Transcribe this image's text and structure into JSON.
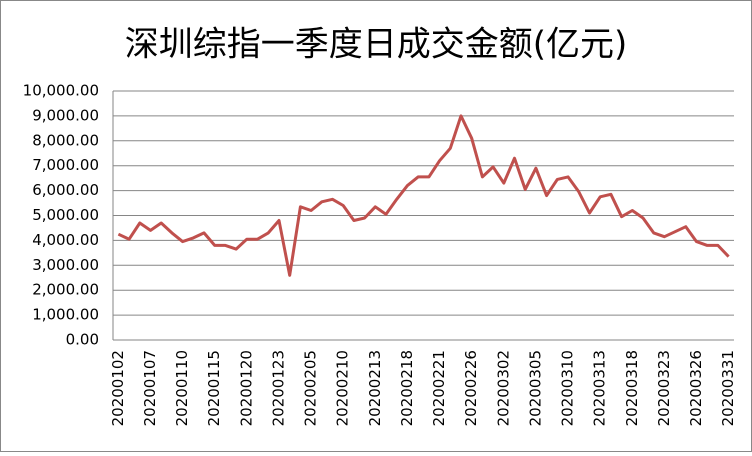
{
  "chart_data": {
    "type": "line",
    "title": "深圳综指一季度日成交金额(亿元)",
    "categories": [
      "20200102",
      null,
      null,
      "20200107",
      null,
      null,
      "20200110",
      null,
      null,
      "20200115",
      null,
      null,
      "20200120",
      null,
      null,
      "20200123",
      null,
      null,
      "20200205",
      null,
      null,
      "20200210",
      null,
      null,
      "20200213",
      null,
      null,
      "20200218",
      null,
      null,
      "20200221",
      null,
      null,
      "20200226",
      null,
      null,
      "20200302",
      null,
      null,
      "20200305",
      null,
      null,
      "20200310",
      null,
      null,
      "20200313",
      null,
      null,
      "20200318",
      null,
      null,
      "20200323",
      null,
      null,
      "20200326",
      null,
      null,
      "20200331"
    ],
    "values": [
      4250,
      4050,
      4700,
      4400,
      4700,
      4300,
      3950,
      4100,
      4300,
      3800,
      3800,
      3650,
      4050,
      4050,
      4300,
      4800,
      2600,
      5350,
      5200,
      5550,
      5650,
      5400,
      4800,
      4900,
      5350,
      5050,
      5650,
      6200,
      6550,
      6550,
      7200,
      7700,
      9000,
      8100,
      6550,
      6950,
      6300,
      7300,
      6050,
      6900,
      5800,
      6450,
      6550,
      5950,
      5100,
      5750,
      5850,
      4950,
      5200,
      4900,
      4300,
      4150,
      4350,
      4550,
      3950,
      3800,
      3800,
      3350
    ],
    "color": "#c0504d",
    "ylim": [
      0,
      10000
    ],
    "yticks": [
      {
        "value": 0,
        "label": "0.00"
      },
      {
        "value": 1000,
        "label": "1,000.00"
      },
      {
        "value": 2000,
        "label": "2,000.00"
      },
      {
        "value": 3000,
        "label": "3,000.00"
      },
      {
        "value": 4000,
        "label": "4,000.00"
      },
      {
        "value": 5000,
        "label": "5,000.00"
      },
      {
        "value": 6000,
        "label": "6,000.00"
      },
      {
        "value": 7000,
        "label": "7,000.00"
      },
      {
        "value": 8000,
        "label": "8,000.00"
      },
      {
        "value": 9000,
        "label": "9,000.00"
      },
      {
        "value": 10000,
        "label": "10,000.00"
      }
    ],
    "grid": true
  }
}
